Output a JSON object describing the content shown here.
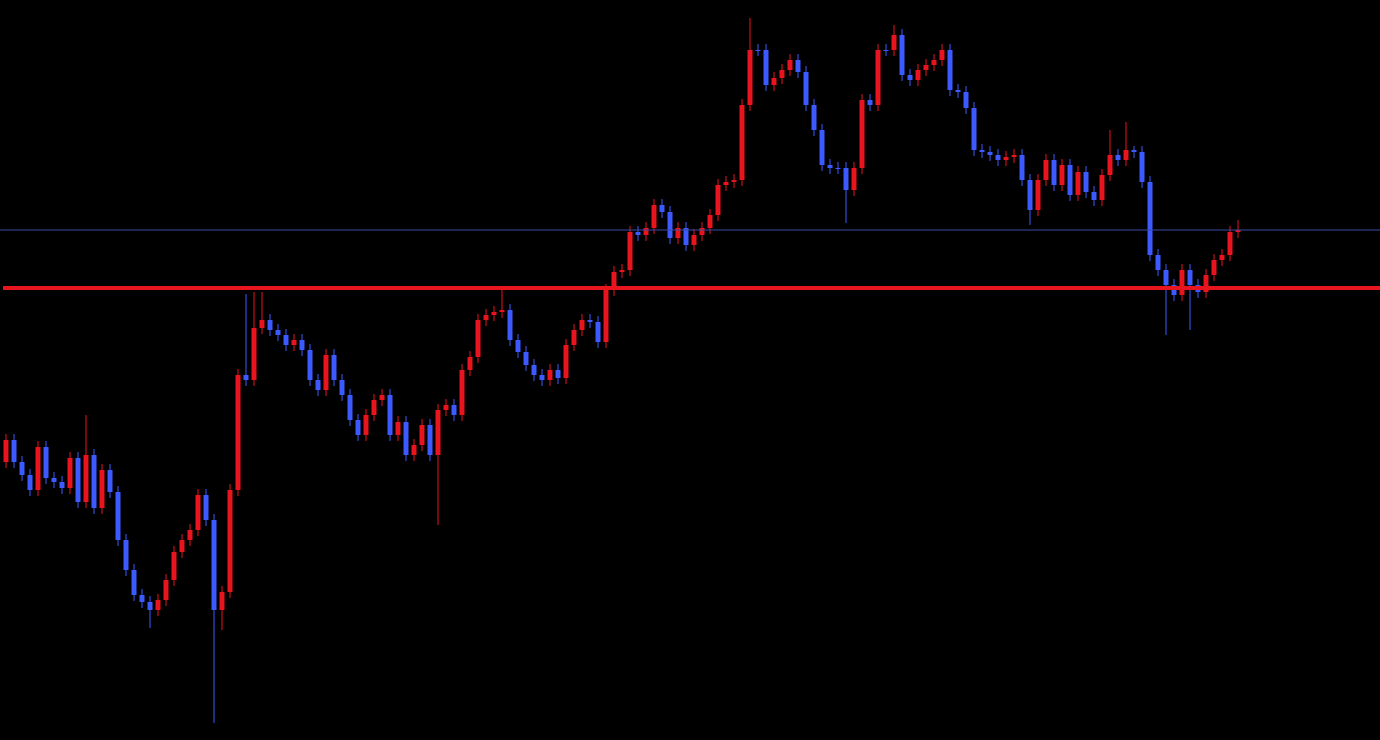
{
  "chart_data": {
    "type": "candlestick",
    "ylim": [
      0,
      740
    ],
    "up_color": "#e8141e",
    "down_color": "#3c5aff",
    "open": [
      278,
      300,
      278,
      265,
      250,
      293,
      262,
      258,
      252,
      282,
      238,
      285,
      232,
      270,
      248,
      200,
      170,
      145,
      138,
      130,
      140,
      160,
      188,
      200,
      210,
      245,
      220,
      130,
      148,
      250,
      365,
      360,
      412,
      420,
      410,
      405,
      395,
      400,
      390,
      360,
      350,
      385,
      360,
      345,
      320,
      305,
      325,
      340,
      345,
      305,
      318,
      285,
      295,
      315,
      285,
      330,
      335,
      325,
      370,
      383,
      420,
      425,
      428,
      430,
      400,
      388,
      375,
      365,
      360,
      370,
      362,
      395,
      410,
      420,
      418,
      398,
      450,
      468,
      470,
      508,
      505,
      512,
      535,
      528,
      502,
      512,
      495,
      505,
      512,
      525,
      555,
      558,
      560,
      635,
      690,
      690,
      655,
      662,
      670,
      680,
      668,
      635,
      610,
      575,
      572,
      572,
      550,
      572,
      640,
      635,
      690,
      690,
      705,
      665,
      660,
      670,
      675,
      680,
      690,
      650,
      648,
      632,
      590,
      588,
      585,
      580,
      583,
      585,
      560,
      530,
      560,
      580,
      555,
      575,
      545,
      568,
      548,
      540,
      565,
      585,
      580,
      590,
      588,
      558,
      485,
      470,
      455,
      445,
      470,
      455,
      448,
      465,
      480,
      485,
      508
    ],
    "high": [
      306,
      306,
      284,
      271,
      299,
      299,
      268,
      264,
      288,
      288,
      325,
      291,
      276,
      276,
      254,
      206,
      176,
      151,
      144,
      146,
      166,
      194,
      206,
      216,
      251,
      251,
      226,
      154,
      256,
      371,
      446,
      448,
      448,
      426,
      416,
      411,
      406,
      406,
      396,
      366,
      391,
      391,
      366,
      351,
      326,
      331,
      346,
      351,
      351,
      324,
      324,
      301,
      321,
      321,
      336,
      341,
      341,
      376,
      389,
      426,
      431,
      434,
      450,
      436,
      406,
      394,
      381,
      371,
      376,
      376,
      401,
      416,
      426,
      426,
      424,
      456,
      474,
      476,
      514,
      514,
      518,
      541,
      541,
      534,
      518,
      518,
      511,
      518,
      531,
      561,
      564,
      566,
      641,
      722,
      696,
      696,
      668,
      676,
      686,
      686,
      674,
      641,
      616,
      581,
      578,
      578,
      578,
      646,
      646,
      696,
      696,
      715,
      711,
      671,
      676,
      681,
      686,
      696,
      696,
      656,
      654,
      638,
      596,
      594,
      591,
      589,
      591,
      591,
      566,
      566,
      586,
      586,
      581,
      581,
      574,
      574,
      554,
      571,
      610,
      591,
      618,
      594,
      594,
      564,
      491,
      476,
      461,
      476,
      476,
      461,
      471,
      486,
      491,
      514,
      520
    ],
    "low": [
      272,
      272,
      259,
      244,
      244,
      256,
      252,
      246,
      246,
      232,
      232,
      226,
      226,
      242,
      194,
      164,
      139,
      132,
      112,
      124,
      134,
      154,
      182,
      194,
      204,
      214,
      17,
      110,
      142,
      244,
      354,
      354,
      406,
      404,
      399,
      389,
      389,
      384,
      354,
      344,
      344,
      354,
      339,
      314,
      299,
      299,
      319,
      334,
      299,
      299,
      279,
      279,
      289,
      279,
      215,
      324,
      319,
      319,
      364,
      377,
      414,
      419,
      422,
      394,
      382,
      369,
      359,
      354,
      354,
      356,
      356,
      389,
      404,
      412,
      392,
      392,
      444,
      462,
      464,
      499,
      499,
      506,
      522,
      496,
      496,
      489,
      489,
      499,
      506,
      519,
      549,
      552,
      554,
      629,
      684,
      649,
      649,
      656,
      664,
      662,
      629,
      604,
      569,
      566,
      566,
      517,
      544,
      566,
      629,
      629,
      684,
      684,
      659,
      654,
      654,
      664,
      669,
      674,
      644,
      642,
      626,
      584,
      582,
      579,
      574,
      574,
      577,
      554,
      515,
      524,
      554,
      549,
      549,
      539,
      539,
      542,
      534,
      534,
      559,
      574,
      574,
      582,
      552,
      479,
      464,
      405,
      439,
      439,
      410,
      442,
      442,
      459,
      474,
      479,
      502
    ],
    "close": [
      300,
      278,
      265,
      250,
      293,
      262,
      258,
      252,
      282,
      238,
      285,
      232,
      270,
      248,
      200,
      170,
      145,
      138,
      130,
      140,
      160,
      188,
      200,
      210,
      245,
      220,
      130,
      148,
      250,
      365,
      360,
      412,
      420,
      410,
      405,
      395,
      400,
      390,
      360,
      350,
      385,
      360,
      345,
      320,
      305,
      325,
      340,
      345,
      305,
      318,
      285,
      295,
      315,
      285,
      330,
      335,
      325,
      370,
      383,
      420,
      425,
      428,
      430,
      400,
      388,
      375,
      365,
      360,
      370,
      362,
      395,
      410,
      420,
      418,
      398,
      450,
      468,
      470,
      508,
      505,
      512,
      535,
      528,
      502,
      512,
      495,
      505,
      512,
      525,
      555,
      558,
      560,
      635,
      690,
      690,
      655,
      662,
      670,
      680,
      668,
      635,
      610,
      575,
      572,
      572,
      550,
      572,
      640,
      635,
      690,
      690,
      705,
      665,
      660,
      670,
      675,
      680,
      690,
      650,
      648,
      632,
      590,
      588,
      585,
      580,
      583,
      585,
      560,
      530,
      560,
      580,
      555,
      575,
      545,
      568,
      548,
      540,
      565,
      585,
      580,
      590,
      588,
      558,
      485,
      470,
      455,
      445,
      470,
      455,
      448,
      465,
      480,
      485,
      508,
      510
    ],
    "hlines": [
      {
        "value": 510,
        "color": "#3a4aa8"
      },
      {
        "value": 452,
        "color": "#e8141e"
      }
    ]
  }
}
